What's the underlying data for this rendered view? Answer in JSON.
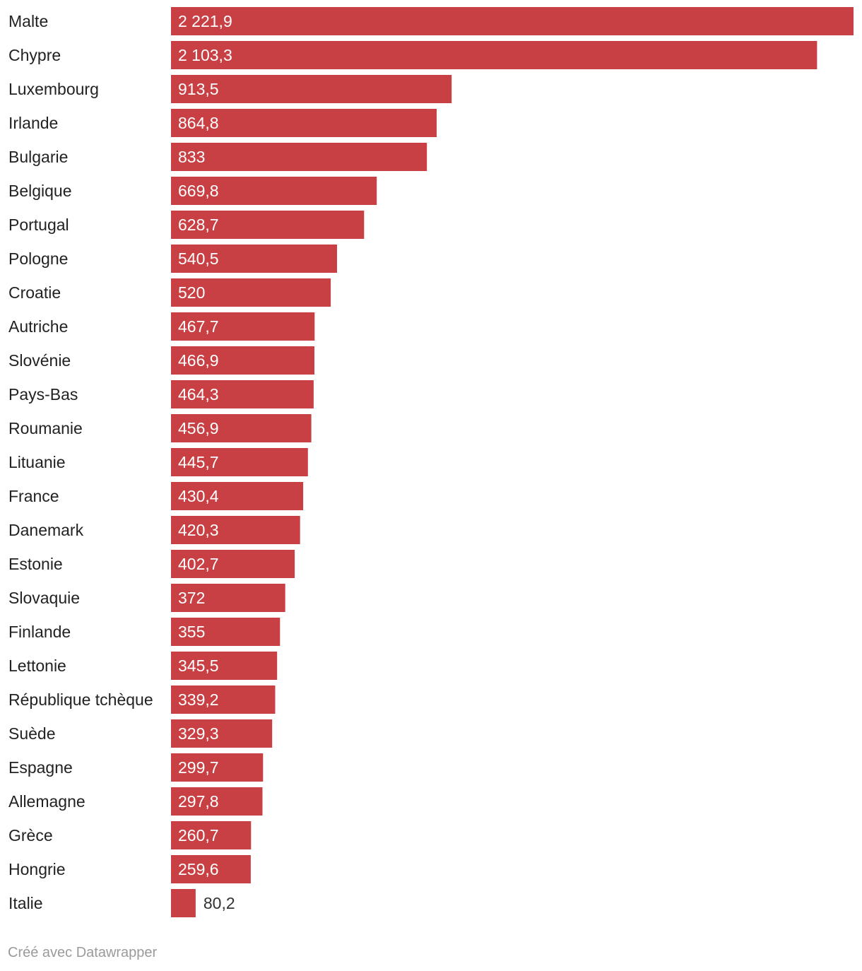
{
  "chart_data": {
    "type": "bar",
    "orientation": "horizontal",
    "categories": [
      "Malte",
      "Chypre",
      "Luxembourg",
      "Irlande",
      "Bulgarie",
      "Belgique",
      "Portugal",
      "Pologne",
      "Croatie",
      "Autriche",
      "Slovénie",
      "Pays-Bas",
      "Roumanie",
      "Lituanie",
      "France",
      "Danemark",
      "Estonie",
      "Slovaquie",
      "Finlande",
      "Lettonie",
      "République tchèque",
      "Suède",
      "Espagne",
      "Allemagne",
      "Grèce",
      "Hongrie",
      "Italie"
    ],
    "values": [
      2221.9,
      2103.3,
      913.5,
      864.8,
      833,
      669.8,
      628.7,
      540.5,
      520,
      467.7,
      466.9,
      464.3,
      456.9,
      445.7,
      430.4,
      420.3,
      402.7,
      372,
      355,
      345.5,
      339.2,
      329.3,
      299.7,
      297.8,
      260.7,
      259.6,
      80.2
    ],
    "value_labels": [
      "2 221,9",
      "2 103,3",
      "913,5",
      "864,8",
      "833",
      "669,8",
      "628,7",
      "540,5",
      "520",
      "467,7",
      "466,9",
      "464,3",
      "456,9",
      "445,7",
      "430,4",
      "420,3",
      "402,7",
      "372",
      "355",
      "345,5",
      "339,2",
      "329,3",
      "299,7",
      "297,8",
      "260,7",
      "259,6",
      "80,2"
    ],
    "xlim": [
      0,
      2221.9
    ],
    "grid": false,
    "bar_color": "#c94044",
    "label_inside_color": "#ffffff",
    "label_outside_color": "#333333"
  },
  "footer": {
    "credit": "Créé avec Datawrapper"
  }
}
